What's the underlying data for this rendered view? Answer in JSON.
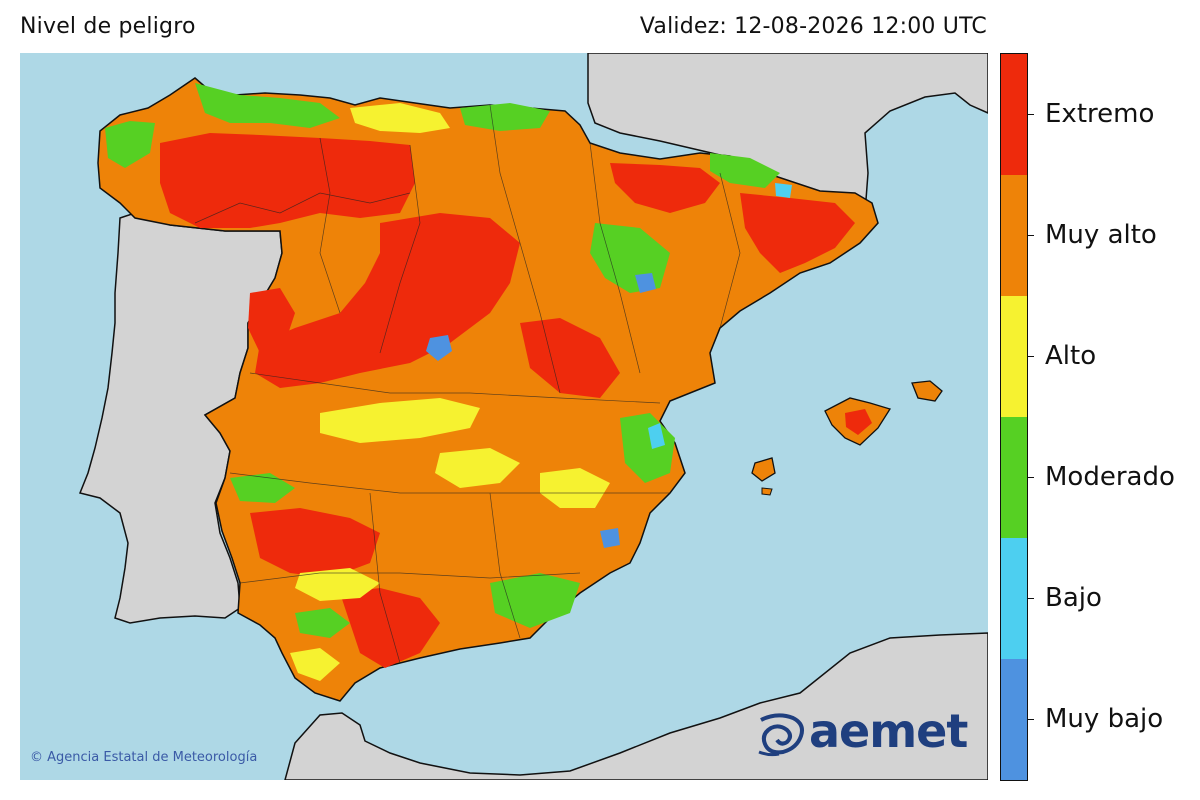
{
  "header": {
    "title": "Nivel de peligro",
    "validity": "Validez: 12-08-2026 12:00 UTC"
  },
  "map": {
    "sea_color": "#aed8e6",
    "land_outside_color": "#d3d3d3",
    "border_color": "#222222"
  },
  "legend": {
    "levels": [
      {
        "label": "Extremo",
        "color": "#ee2a0c"
      },
      {
        "label": "Muy alto",
        "color": "#ee8308"
      },
      {
        "label": "Alto",
        "color": "#f6f230"
      },
      {
        "label": "Moderado",
        "color": "#56d023"
      },
      {
        "label": "Bajo",
        "color": "#4dcff0"
      },
      {
        "label": "Muy bajo",
        "color": "#4e92e0"
      }
    ]
  },
  "footer": {
    "copyright": "© Agencia Estatal de Meteorología",
    "logo_text": "aemet"
  }
}
